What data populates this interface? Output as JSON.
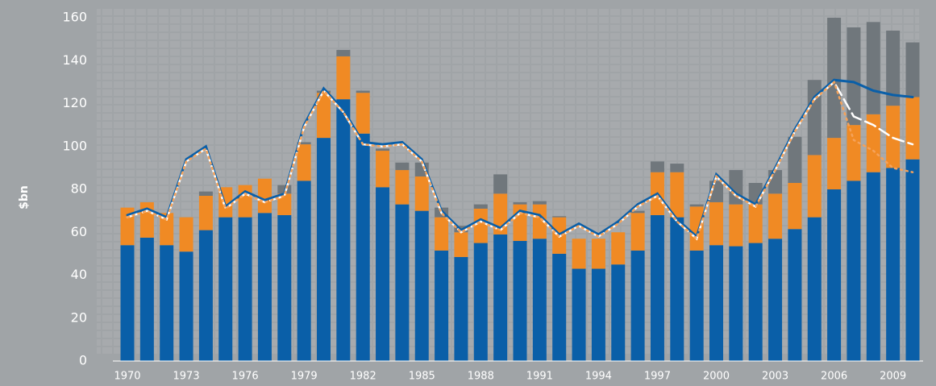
{
  "chart_data": {
    "type": "bar",
    "ylabel": "$bn",
    "categories": [
      "1970",
      null,
      null,
      "1973",
      null,
      null,
      "1976",
      null,
      null,
      "1979",
      null,
      null,
      "1982",
      null,
      null,
      "1985",
      null,
      null,
      "1988",
      null,
      null,
      "1991",
      null,
      null,
      "1994",
      null,
      null,
      "1997",
      null,
      null,
      "2000",
      null,
      null,
      "2003",
      null,
      null,
      "2006",
      null,
      null,
      "2009",
      null
    ],
    "series": [
      {
        "color": "#0a5fa8",
        "values": [
          54,
          57.5,
          54,
          51,
          61,
          67,
          67,
          69,
          68,
          84,
          104,
          122,
          106,
          81,
          73,
          70,
          51.5,
          48.5,
          55,
          59,
          56,
          57,
          50,
          43,
          43,
          45,
          51.5,
          68,
          67,
          51.5,
          54,
          53.5,
          55,
          57,
          61.5,
          67,
          80,
          84,
          88,
          90,
          94
        ]
      },
      {
        "color": "#f08a24",
        "values": [
          17.5,
          16.5,
          15,
          16,
          16,
          14,
          15,
          16,
          10,
          17,
          21,
          20,
          19,
          17,
          16,
          16,
          15.5,
          11.5,
          16,
          19,
          17,
          16,
          17,
          14,
          14,
          15,
          17.5,
          20,
          21,
          20.5,
          20,
          19.5,
          18,
          21,
          21.5,
          29,
          24,
          26,
          27,
          29,
          29
        ]
      },
      {
        "color": "#70777c",
        "values": [
          0,
          0,
          0,
          0,
          2,
          0,
          0,
          0,
          4,
          1,
          1,
          3,
          1,
          1,
          3.5,
          6.5,
          4.5,
          3,
          2,
          9,
          1,
          1.5,
          0.5,
          0,
          0,
          0,
          1,
          5,
          4,
          1,
          10,
          16,
          10,
          11,
          21.5,
          35,
          56,
          45.5,
          43,
          35,
          25.5
        ]
      }
    ],
    "lines": [
      {
        "color": "#0a5fa8",
        "style": "solid",
        "values": [
          68,
          71,
          67,
          94,
          100,
          72,
          79,
          75,
          78,
          110,
          127,
          117,
          102,
          101,
          102,
          94,
          70,
          61,
          66,
          62,
          70,
          68,
          59,
          64,
          59,
          65,
          73,
          78,
          66,
          58,
          87,
          78,
          73,
          90,
          108,
          123,
          131,
          130,
          126,
          124,
          123
        ]
      },
      {
        "color": "#ffffff",
        "style": "dashed",
        "values": [
          67,
          70,
          66,
          93,
          99,
          71,
          78,
          74,
          77,
          109,
          126,
          116,
          101,
          100,
          101,
          93,
          69,
          60,
          65,
          61,
          69,
          67,
          58,
          63,
          58,
          64,
          72,
          77,
          65,
          57,
          86,
          77,
          72,
          89,
          107,
          122,
          130,
          114,
          110,
          104,
          101
        ]
      },
      {
        "color": "#f5a25a",
        "style": "dotted",
        "values": [
          67,
          70,
          66,
          93,
          99,
          71,
          78,
          74,
          77,
          109,
          126,
          116,
          101,
          100,
          101,
          93,
          69,
          60,
          65,
          61,
          69,
          67,
          58,
          63,
          58,
          64,
          72,
          77,
          65,
          57,
          86,
          77,
          72,
          89,
          107,
          122,
          130,
          103,
          98,
          90,
          88
        ]
      }
    ],
    "ylim": [
      0,
      160
    ],
    "yticks": [
      0,
      20,
      40,
      60,
      80,
      100,
      120,
      140,
      160
    ]
  }
}
